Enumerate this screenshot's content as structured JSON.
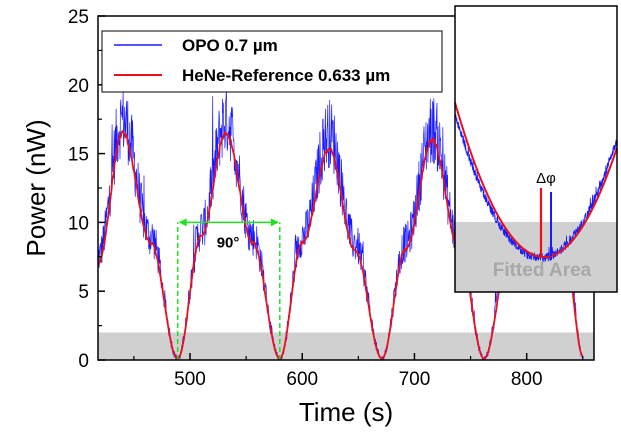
{
  "chart_data": {
    "type": "line",
    "xlabel": "Time (s)",
    "ylabel": "Power (nW)",
    "xlim": [
      418,
      860
    ],
    "ylim": [
      0,
      25
    ],
    "x_ticks": [
      500,
      600,
      700,
      800
    ],
    "y_ticks": [
      0,
      5,
      10,
      15,
      20,
      25
    ],
    "grid": false,
    "legend_position": "top-left",
    "series": [
      {
        "name": "OPO 0.7 µm",
        "color": "#1a1aff",
        "noisy": true,
        "x": [
          418,
          440,
          465,
          489,
          510,
          532,
          556,
          580,
          600,
          624,
          647,
          671,
          692,
          716,
          740,
          762,
          785,
          810,
          835,
          850
        ],
        "y": [
          7.5,
          17.5,
          9.0,
          0.1,
          9.5,
          17.5,
          9.0,
          0.1,
          9.0,
          16.5,
          8.5,
          0.1,
          8.5,
          16.8,
          8.5,
          0.1,
          8.5,
          16.0,
          8.0,
          0.3
        ]
      },
      {
        "name": "HeNe-Reference 0.633 µm",
        "color": "#e8111b",
        "x": [
          418,
          440,
          465,
          489,
          510,
          532,
          556,
          580,
          600,
          624,
          647,
          671,
          692,
          716,
          740,
          762,
          785,
          810,
          835,
          850
        ],
        "y": [
          7.0,
          16.5,
          8.5,
          0.1,
          9.0,
          16.5,
          8.5,
          0.1,
          8.5,
          15.3,
          8.0,
          0.1,
          8.0,
          16.0,
          8.0,
          0.1,
          8.0,
          15.3,
          7.5,
          0.3
        ]
      }
    ],
    "fitted_band_y": [
      0,
      2
    ],
    "annotations": {
      "phase_label": "90°",
      "phase_marker_x": [
        489,
        580
      ],
      "phase_marker_y": 10
    },
    "inset": {
      "dphi_label": "Δφ",
      "band_label": "Fitted Area"
    }
  },
  "colors": {
    "opo": "#1a1aff",
    "hene": "#e8111b",
    "band": "#d0d0d0",
    "marker": "#1fe01f"
  }
}
